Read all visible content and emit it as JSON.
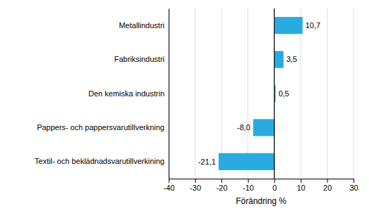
{
  "chart_data": {
    "type": "bar",
    "orientation": "horizontal",
    "categories": [
      "Textil- och beklädnadsvarutillverkining",
      "Pappers- och pappersvarutillverkning",
      "Den kemiska industrin",
      "Fabriksindustri",
      "Metallindustri"
    ],
    "values": [
      -21.1,
      -8.0,
      0.5,
      3.5,
      10.7
    ],
    "value_labels": [
      "-21,1",
      "-8,0",
      "0,5",
      "3,5",
      "10,7"
    ],
    "data_labels": true,
    "color": "#29abe2",
    "xlabel": "Förändring %",
    "xlim": [
      -40,
      30
    ],
    "xticks": [
      -40,
      -30,
      -20,
      -10,
      0,
      10,
      20,
      30
    ],
    "grid": true
  }
}
